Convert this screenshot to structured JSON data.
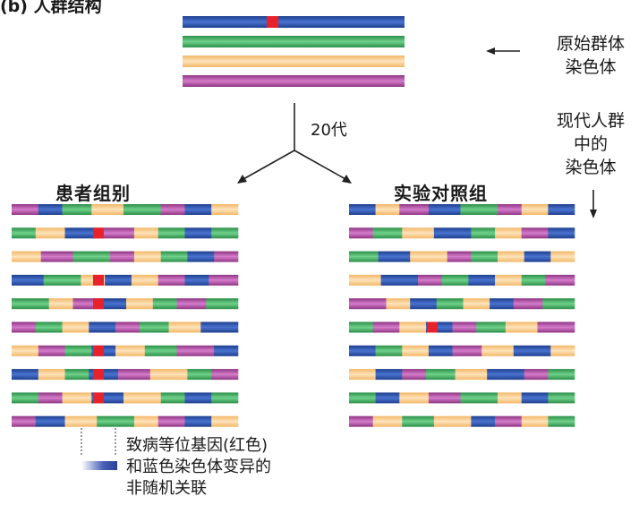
{
  "colors": {
    "blue": "#2a4fa8",
    "green": "#3fae5f",
    "orange": "#f8c98a",
    "purple": "#b04ba3",
    "red": "#e8222a",
    "arrow": "#222222"
  },
  "labels": {
    "title_partial": "(b) 人群结构",
    "original_line1": "原始群体",
    "original_line2": "染色体",
    "generations": "20代",
    "modern_line1": "现代人群",
    "modern_line2": "中的",
    "modern_line3": "染色体",
    "patient_group": "患者组别",
    "control_group": "实验对照组",
    "note_line1": "致病等位基因(红色)",
    "note_line2": "和蓝色染色体变异的",
    "note_line3": "非随机关联"
  },
  "original_population": [
    {
      "color": "blue",
      "has_red_allele": true
    },
    {
      "color": "green",
      "has_red_allele": false
    },
    {
      "color": "orange",
      "has_red_allele": false
    },
    {
      "color": "purple",
      "has_red_allele": false
    }
  ],
  "patient_chromosomes": [
    {
      "segments": [
        "purple",
        "blue",
        "green",
        "orange",
        "green",
        "purple",
        "blue",
        "orange"
      ],
      "red_allele": false
    },
    {
      "segments": [
        "green",
        "orange",
        "blue",
        "purple",
        "orange",
        "green",
        "blue",
        "green"
      ],
      "red_allele": true
    },
    {
      "segments": [
        "orange",
        "purple",
        "green",
        "purple",
        "orange",
        "green",
        "blue",
        "purple"
      ],
      "red_allele": false
    },
    {
      "segments": [
        "blue",
        "green",
        "orange",
        "blue",
        "orange",
        "purple",
        "blue",
        "purple"
      ],
      "red_allele": true
    },
    {
      "segments": [
        "green",
        "orange",
        "purple",
        "blue",
        "orange",
        "green",
        "purple",
        "green"
      ],
      "red_allele": true
    },
    {
      "segments": [
        "purple",
        "green",
        "orange",
        "blue",
        "purple",
        "green",
        "orange",
        "blue"
      ],
      "red_allele": false
    },
    {
      "segments": [
        "orange",
        "purple",
        "green",
        "blue",
        "orange",
        "green",
        "purple",
        "blue"
      ],
      "red_allele": true
    },
    {
      "segments": [
        "blue",
        "orange",
        "green",
        "blue",
        "purple",
        "orange",
        "green",
        "purple"
      ],
      "red_allele": true
    },
    {
      "segments": [
        "green",
        "purple",
        "orange",
        "blue",
        "orange",
        "green",
        "blue",
        "green"
      ],
      "red_allele": true
    },
    {
      "segments": [
        "purple",
        "blue",
        "orange",
        "green",
        "orange",
        "purple",
        "blue",
        "orange"
      ],
      "red_allele": false
    }
  ],
  "control_chromosomes": [
    {
      "segments": [
        "blue",
        "orange",
        "purple",
        "blue",
        "green",
        "purple",
        "orange",
        "blue"
      ],
      "red_allele": false
    },
    {
      "segments": [
        "purple",
        "green",
        "orange",
        "blue",
        "green",
        "orange",
        "purple",
        "blue"
      ],
      "red_allele": false
    },
    {
      "segments": [
        "green",
        "blue",
        "orange",
        "purple",
        "green",
        "orange",
        "blue",
        "orange"
      ],
      "red_allele": false
    },
    {
      "segments": [
        "orange",
        "blue",
        "purple",
        "green",
        "blue",
        "orange",
        "green",
        "purple"
      ],
      "red_allele": false
    },
    {
      "segments": [
        "purple",
        "orange",
        "blue",
        "green",
        "orange",
        "blue",
        "purple",
        "green"
      ],
      "red_allele": false
    },
    {
      "segments": [
        "green",
        "purple",
        "orange",
        "blue",
        "purple",
        "green",
        "orange",
        "purple"
      ],
      "red_allele": true
    },
    {
      "segments": [
        "blue",
        "green",
        "orange",
        "blue",
        "purple",
        "orange",
        "blue",
        "orange"
      ],
      "red_allele": false
    },
    {
      "segments": [
        "orange",
        "blue",
        "purple",
        "green",
        "orange",
        "blue",
        "purple",
        "green"
      ],
      "red_allele": false
    },
    {
      "segments": [
        "green",
        "blue",
        "orange",
        "purple",
        "green",
        "orange",
        "blue",
        "green"
      ],
      "red_allele": false
    },
    {
      "segments": [
        "purple",
        "orange",
        "green",
        "orange",
        "blue",
        "purple",
        "orange",
        "green"
      ],
      "red_allele": false
    }
  ]
}
